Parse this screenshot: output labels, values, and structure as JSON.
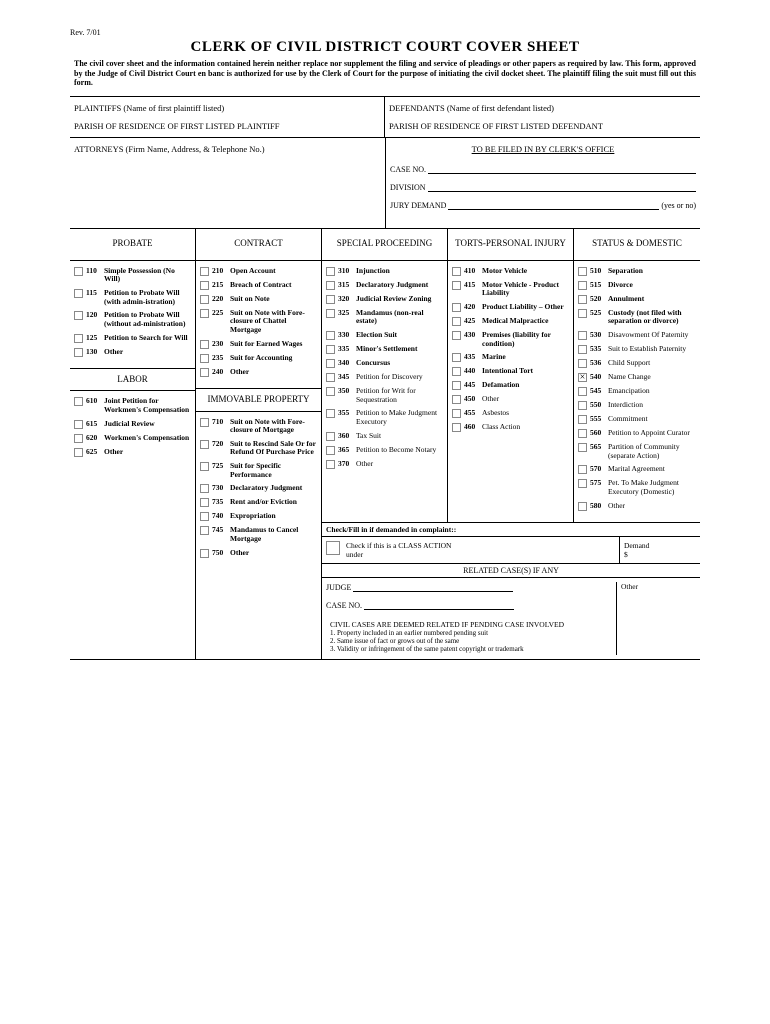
{
  "rev": "Rev. 7/01",
  "title": "CLERK OF CIVIL DISTRICT COURT COVER SHEET",
  "intro": "The civil cover sheet and the information contained herein neither replace nor supplement the filing and service of pleadings or other papers as required by law. This form, approved by the Judge of Civil District Court en banc is authorized for use by the Clerk of Court for the purpose of initiating the civil docket sheet. The plaintiff filing the suit must fill out this form.",
  "top": {
    "plaintiffs": "PLAINTIFFS (Name of first plaintiff listed)",
    "defendants": "DEFENDANTS (Name of first defendant listed)",
    "plaintiff_parish": "PARISH OF RESIDENCE OF FIRST LISTED PLAINTIFF",
    "defendant_parish": "PARISH OF RESIDENCE OF FIRST LISTED DEFENDANT",
    "attorneys": "ATTORNEYS (Firm Name, Address, & Telephone No.)",
    "clerk_hdr": "TO BE FILED IN BY CLERK'S OFFICE",
    "case_no": "CASE NO.",
    "division": "DIVISION",
    "jury": "JURY DEMAND",
    "jury_sfx": "(yes or no)"
  },
  "categories": {
    "probate": {
      "hdr": "PROBATE",
      "items": [
        {
          "code": "110",
          "label": "Simple Possession (No Will)",
          "bold": true
        },
        {
          "code": "115",
          "label": "Petition to Probate Will (with admin-istration)",
          "bold": true
        },
        {
          "code": "120",
          "label": "Petition to Probate Will (without ad-ministration)",
          "bold": true
        },
        {
          "code": "125",
          "label": "Petition to Search for Will",
          "bold": true
        },
        {
          "code": "130",
          "label": "Other",
          "bold": true
        }
      ]
    },
    "labor": {
      "hdr": "LABOR",
      "items": [
        {
          "code": "610",
          "label": "Joint Petition for Workmen's Compensation",
          "bold": true
        },
        {
          "code": "615",
          "label": "Judicial Review",
          "bold": true
        },
        {
          "code": "620",
          "label": "Workmen's Compensation",
          "bold": true
        },
        {
          "code": "625",
          "label": "Other",
          "bold": true
        }
      ]
    },
    "contract": {
      "hdr": "CONTRACT",
      "items": [
        {
          "code": "210",
          "label": "Open Account",
          "bold": true
        },
        {
          "code": "215",
          "label": "Breach of Contract",
          "bold": true
        },
        {
          "code": "220",
          "label": "Suit on Note",
          "bold": true
        },
        {
          "code": "225",
          "label": "Suit on Note with Fore-closure of Chattel Mortgage",
          "bold": true
        },
        {
          "code": "230",
          "label": "Suit for Earned Wages",
          "bold": true
        },
        {
          "code": "235",
          "label": "Suit for Accounting",
          "bold": true
        },
        {
          "code": "240",
          "label": "Other",
          "bold": true
        }
      ]
    },
    "immovable": {
      "hdr": "IMMOVABLE PROPERTY",
      "items": [
        {
          "code": "710",
          "label": "Suit on Note with Fore-closure of Mortgage",
          "bold": true
        },
        {
          "code": "720",
          "label": "Suit to Rescind Sale Or for Refund Of Purchase Price",
          "bold": true
        },
        {
          "code": "725",
          "label": "Suit for Specific Performance",
          "bold": true
        },
        {
          "code": "730",
          "label": "Declaratory Judgment",
          "bold": true
        },
        {
          "code": "735",
          "label": "Rent and/or Eviction",
          "bold": true
        },
        {
          "code": "740",
          "label": "Expropriation",
          "bold": true
        },
        {
          "code": "745",
          "label": "Mandamus to Cancel Mortgage",
          "bold": true
        },
        {
          "code": "750",
          "label": "Other",
          "bold": true
        }
      ]
    },
    "special": {
      "hdr": "SPECIAL PROCEEDING",
      "items": [
        {
          "code": "310",
          "label": "Injunction",
          "bold": true
        },
        {
          "code": "315",
          "label": "Declaratory Judgment",
          "bold": true
        },
        {
          "code": "320",
          "label": "Judicial Review Zoning",
          "bold": true
        },
        {
          "code": "325",
          "label": "Mandamus (non-real estate)",
          "bold": true
        },
        {
          "code": "330",
          "label": "Election Suit",
          "bold": true
        },
        {
          "code": "335",
          "label": "Minor's Settlement",
          "bold": true
        },
        {
          "code": "340",
          "label": "Concursus",
          "bold": true
        },
        {
          "code": "345",
          "label": "Petition for Discovery",
          "bold": false
        },
        {
          "code": "350",
          "label": "Petition for Writ for Sequestration",
          "bold": false
        },
        {
          "code": "355",
          "label": "Petition to Make Judgment Executory",
          "bold": false
        },
        {
          "code": "360",
          "label": "Tax Suit",
          "bold": false
        },
        {
          "code": "365",
          "label": "Petition to Become Notary",
          "bold": false
        },
        {
          "code": "370",
          "label": "Other",
          "bold": false
        }
      ]
    },
    "torts": {
      "hdr": "TORTS-PERSONAL INJURY",
      "items": [
        {
          "code": "410",
          "label": "Motor Vehicle",
          "bold": true
        },
        {
          "code": "415",
          "label": "Motor Vehicle - Product Liability",
          "bold": true
        },
        {
          "code": "420",
          "label": "Product Liability – Other",
          "bold": true
        },
        {
          "code": "425",
          "label": "Medical Malpractice",
          "bold": true
        },
        {
          "code": "430",
          "label": "Premises (liability for condition)",
          "bold": true
        },
        {
          "code": "435",
          "label": "Marine",
          "bold": true
        },
        {
          "code": "440",
          "label": "Intentional Tort",
          "bold": true
        },
        {
          "code": "445",
          "label": "Defamation",
          "bold": true
        },
        {
          "code": "450",
          "label": "Other",
          "bold": false
        },
        {
          "code": "455",
          "label": "Asbestos",
          "bold": false
        },
        {
          "code": "460",
          "label": "Class Action",
          "bold": false
        }
      ]
    },
    "status": {
      "hdr": "STATUS & DOMESTIC",
      "items": [
        {
          "code": "510",
          "label": "Separation",
          "bold": true
        },
        {
          "code": "515",
          "label": "Divorce",
          "bold": true
        },
        {
          "code": "520",
          "label": "Annulment",
          "bold": true
        },
        {
          "code": "525",
          "label": "Custody (not filed with separation or divorce)",
          "bold": true
        },
        {
          "code": "530",
          "label": "Disavowment Of Paternity",
          "bold": false
        },
        {
          "code": "535",
          "label": "Suit to Establish Paternity",
          "bold": false
        },
        {
          "code": "536",
          "label": "Child Support",
          "bold": false
        },
        {
          "code": "540",
          "label": "Name Change",
          "bold": false,
          "checked": true
        },
        {
          "code": "545",
          "label": "Emancipation",
          "bold": false
        },
        {
          "code": "550",
          "label": "Interdiction",
          "bold": false
        },
        {
          "code": "555",
          "label": "Commitment",
          "bold": false
        },
        {
          "code": "560",
          "label": "Petition to Appoint Curator",
          "bold": false
        },
        {
          "code": "565",
          "label": "Partition of Community (separate Action)",
          "bold": false
        },
        {
          "code": "570",
          "label": "Marital Agreement",
          "bold": false
        },
        {
          "code": "575",
          "label": "Pet. To Make Judgment Executory (Domestic)",
          "bold": false
        },
        {
          "code": "580",
          "label": "Other",
          "bold": false
        }
      ]
    }
  },
  "bottom": {
    "check_hdr": "Check/Fill in if demanded in complaint::",
    "class_action_pre": "Check if this is a",
    "class_action": "CLASS ACTION",
    "under": "under",
    "demand": "Demand",
    "dollar": "$",
    "related_hdr": "RELATED CASE(S) IF ANY",
    "other": "Other",
    "judge": "JUDGE",
    "case_no": "CASE NO.",
    "related_title": "CIVIL CASES ARE DEEMED RELATED IF PENDING CASE INVOLVED",
    "note1": "1. Property included in an earlier numbered pending suit",
    "note2": "2. Same issue of fact or grows out of the same",
    "note3": "3. Validity or infringement of the same patent copyright or trademark"
  }
}
